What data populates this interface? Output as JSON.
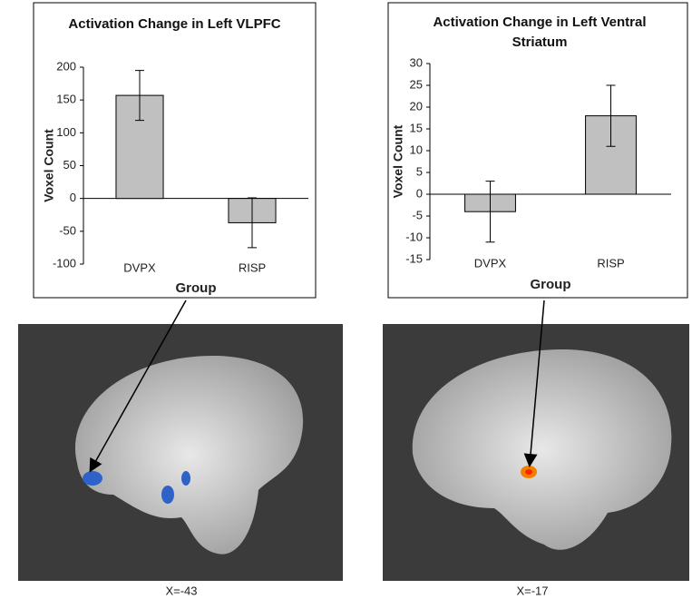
{
  "chart_data": [
    {
      "type": "bar",
      "title": "Activation Change in Left VLPFC",
      "y_label": "Voxel Count",
      "x_label": "Group",
      "categories": [
        "DVPX",
        "RISP"
      ],
      "values": [
        157,
        -37
      ],
      "errors": [
        38,
        38
      ],
      "color": "#c0c0c0",
      "ylim": [
        -100,
        200
      ],
      "yticks": [
        -100,
        -50,
        0,
        50,
        100,
        150,
        200
      ],
      "grid": false
    },
    {
      "type": "bar",
      "title": "Activation Change in Left Ventral Striatum",
      "y_label": "Voxel Count",
      "x_label": "Group",
      "categories": [
        "DVPX",
        "RISP"
      ],
      "values": [
        -4,
        18
      ],
      "errors": [
        7,
        7
      ],
      "color": "#c0c0c0",
      "ylim": [
        -15,
        30
      ],
      "yticks": [
        -15,
        -10,
        -5,
        0,
        5,
        10,
        15,
        20,
        25,
        30
      ],
      "grid": false
    }
  ],
  "images": [
    {
      "caption": "X=-43"
    },
    {
      "caption": "X=-17"
    }
  ]
}
